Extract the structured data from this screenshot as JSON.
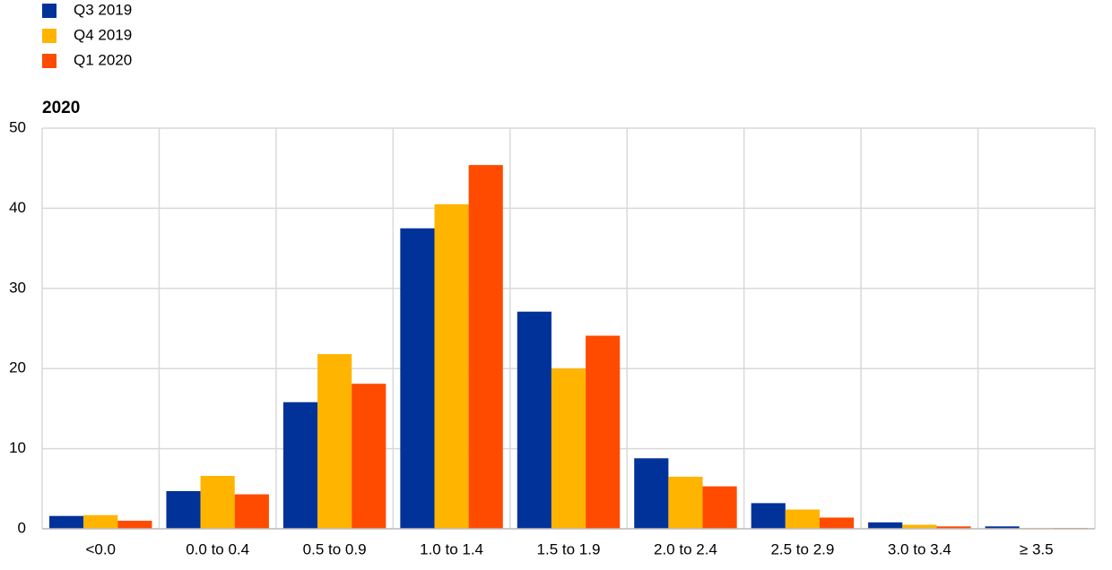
{
  "chart_data": {
    "type": "bar",
    "title": "2020",
    "categories": [
      "<0.0",
      "0.0 to 0.4",
      "0.5 to 0.9",
      "1.0 to 1.4",
      "1.5 to 1.9",
      "2.0 to 2.4",
      "2.5 to 2.9",
      "3.0 to 3.4",
      "≥ 3.5"
    ],
    "series": [
      {
        "name": "Q3 2019",
        "color": "#003299",
        "values": [
          1.6,
          4.7,
          15.8,
          37.5,
          27.1,
          8.8,
          3.2,
          0.8,
          0.3
        ]
      },
      {
        "name": "Q4 2019",
        "color": "#ffb400",
        "values": [
          1.7,
          6.6,
          21.8,
          40.5,
          20.0,
          6.5,
          2.4,
          0.5,
          0.1
        ]
      },
      {
        "name": "Q1 2020",
        "color": "#ff4b00",
        "values": [
          1.0,
          4.3,
          18.1,
          45.4,
          24.1,
          5.3,
          1.4,
          0.3,
          0.1
        ]
      }
    ],
    "ylim": [
      0,
      50
    ],
    "yticks": [
      0,
      10,
      20,
      30,
      40,
      50
    ],
    "grid": true,
    "legend": "top-left"
  }
}
